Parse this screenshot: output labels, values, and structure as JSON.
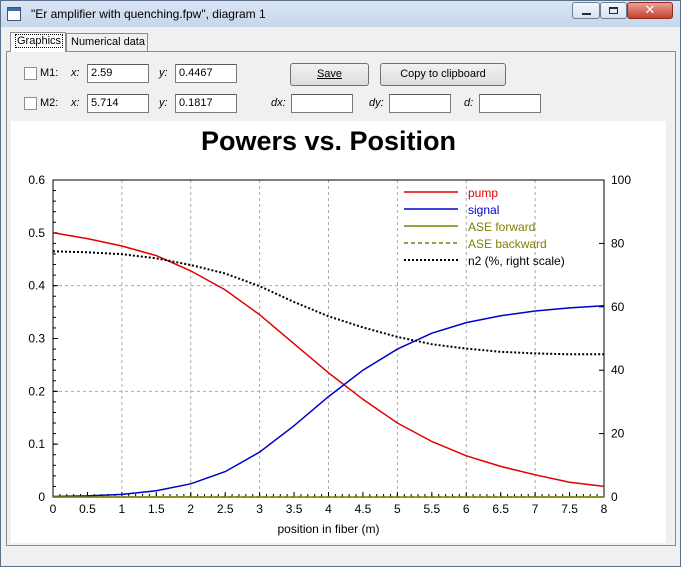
{
  "window": {
    "title": "\"Er amplifier with quenching.fpw\", diagram 1",
    "minimize_icon": "minimize-icon",
    "maximize_icon": "maximize-icon",
    "close_icon": "close-icon",
    "close_glyph": "✕"
  },
  "tabs": [
    {
      "label": "Graphics",
      "selected": true
    },
    {
      "label": "Numerical data",
      "selected": false
    }
  ],
  "markers": {
    "m1": {
      "label": "M1:",
      "checked": false,
      "x_label": "x:",
      "x_value": "2.59",
      "y_label": "y:",
      "y_value": "0.4467"
    },
    "m2": {
      "label": "M2:",
      "checked": false,
      "x_label": "x:",
      "x_value": "5.714",
      "y_label": "y:",
      "y_value": "0.1817"
    }
  },
  "deltas": {
    "dx_label": "dx:",
    "dx_value": "",
    "dy_label": "dy:",
    "dy_value": "",
    "d_label": "d:",
    "d_value": ""
  },
  "buttons": {
    "save": "Save",
    "copy": "Copy to clipboard"
  },
  "chart_data": {
    "type": "line",
    "title": "Powers vs. Position",
    "xlabel": "position in fiber (m)",
    "ylabel": "",
    "xlim": [
      0,
      8
    ],
    "ylim": [
      0,
      0.6
    ],
    "y2lim": [
      0,
      100
    ],
    "x_ticks": [
      "0",
      "0.5",
      "1",
      "1.5",
      "2",
      "2.5",
      "3",
      "3.5",
      "4",
      "4.5",
      "5",
      "5.5",
      "6",
      "6.5",
      "7",
      "7.5",
      "8"
    ],
    "y_ticks": [
      "0",
      "0.1",
      "0.2",
      "0.3",
      "0.4",
      "0.5",
      "0.6"
    ],
    "y2_ticks": [
      "0",
      "20",
      "40",
      "60",
      "80",
      "100"
    ],
    "grid": true,
    "legend_position": "top-right",
    "series": [
      {
        "name": "pump",
        "color": "#e00000",
        "style": "solid",
        "axis": "left",
        "x": [
          0,
          0.5,
          1,
          1.5,
          2,
          2.5,
          3,
          3.5,
          4,
          4.5,
          5,
          5.5,
          6,
          6.5,
          7,
          7.5,
          8
        ],
        "y": [
          0.5,
          0.489,
          0.475,
          0.457,
          0.428,
          0.392,
          0.345,
          0.29,
          0.235,
          0.185,
          0.14,
          0.105,
          0.078,
          0.058,
          0.042,
          0.028,
          0.02
        ]
      },
      {
        "name": "signal",
        "color": "#0000cc",
        "style": "solid",
        "axis": "left",
        "x": [
          0,
          0.5,
          1,
          1.5,
          2,
          2.5,
          3,
          3.5,
          4,
          4.5,
          5,
          5.5,
          6,
          6.5,
          7,
          7.5,
          8
        ],
        "y": [
          0.001,
          0.002,
          0.005,
          0.012,
          0.025,
          0.048,
          0.085,
          0.135,
          0.19,
          0.24,
          0.28,
          0.31,
          0.33,
          0.343,
          0.352,
          0.358,
          0.362
        ]
      },
      {
        "name": "ASE forward",
        "color": "#7f7f00",
        "style": "solid",
        "axis": "left",
        "x": [
          0,
          8
        ],
        "y": [
          0,
          0
        ]
      },
      {
        "name": "ASE backward",
        "color": "#7f7f00",
        "style": "dashed",
        "axis": "left",
        "x": [
          0,
          8
        ],
        "y": [
          0,
          0
        ]
      },
      {
        "name": "n2 (%, right scale)",
        "color": "#000000",
        "style": "dotted",
        "axis": "right",
        "x": [
          0,
          0.5,
          1,
          1.5,
          2,
          2.5,
          3,
          3.5,
          4,
          4.5,
          5,
          5.5,
          6,
          6.5,
          7,
          7.5,
          8
        ],
        "y": [
          77.5,
          77.2,
          76.6,
          75.3,
          73.2,
          70.5,
          66.5,
          61.5,
          57,
          53.5,
          50.5,
          48.2,
          46.8,
          45.8,
          45.3,
          45,
          45
        ]
      }
    ]
  }
}
